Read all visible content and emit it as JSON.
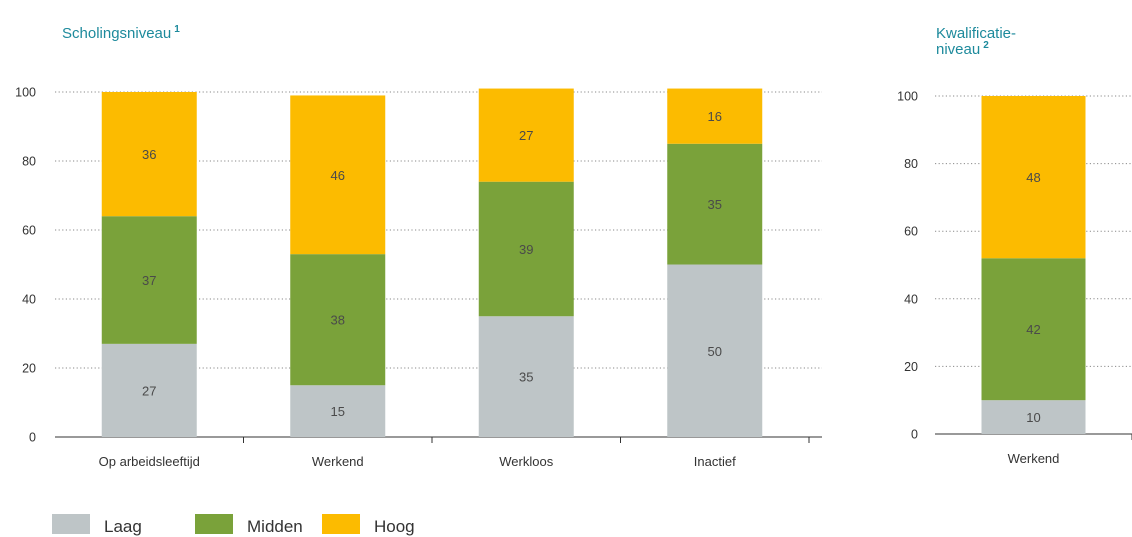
{
  "colors": {
    "Laag": "#bec5c7",
    "Midden": "#7aa23a",
    "Hoog": "#fcbb00",
    "title": "#1d8a9c"
  },
  "legend": [
    {
      "name": "Laag",
      "color": "#bec5c7"
    },
    {
      "name": "Midden",
      "color": "#7aa23a"
    },
    {
      "name": "Hoog",
      "color": "#fcbb00"
    }
  ],
  "chart_data": [
    {
      "type": "bar",
      "stacked": true,
      "title": "Scholingsniveau",
      "title_sup": "1",
      "categories": [
        "Op arbeidsleeftijd",
        "Werkend",
        "Werkloos",
        "Inactief"
      ],
      "series": [
        {
          "name": "Laag",
          "values": [
            27,
            15,
            35,
            50
          ]
        },
        {
          "name": "Midden",
          "values": [
            37,
            38,
            39,
            35
          ]
        },
        {
          "name": "Hoog",
          "values": [
            36,
            46,
            27,
            16
          ]
        }
      ],
      "yticks": [
        0,
        20,
        40,
        60,
        80,
        100
      ],
      "ylim": [
        0,
        100
      ],
      "grid": true,
      "legend_position": "bottom-left"
    },
    {
      "type": "bar",
      "stacked": true,
      "title_lines": [
        "Kwalificatie-",
        "niveau"
      ],
      "title_sup": "2",
      "categories": [
        "Werkend"
      ],
      "series": [
        {
          "name": "Laag",
          "values": [
            10
          ]
        },
        {
          "name": "Midden",
          "values": [
            42
          ]
        },
        {
          "name": "Hoog",
          "values": [
            48
          ]
        }
      ],
      "yticks": [
        0,
        20,
        40,
        60,
        80,
        100
      ],
      "ylim": [
        0,
        100
      ],
      "grid": true
    }
  ]
}
